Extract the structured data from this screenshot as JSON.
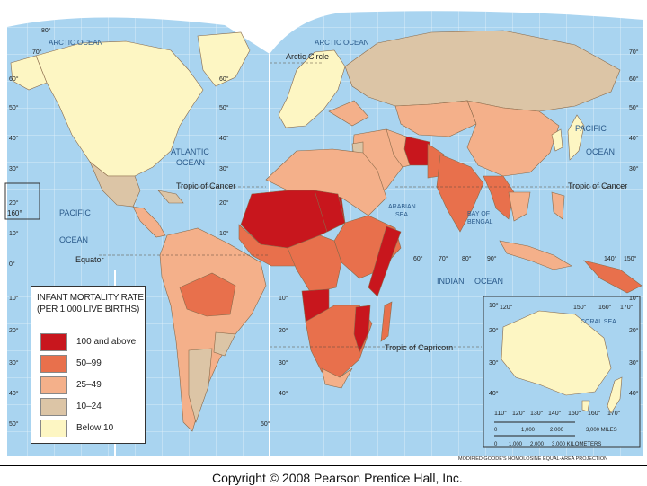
{
  "legend": {
    "title_line1": "INFANT MORTALITY RATE",
    "title_line2": "(PER 1,000 LIVE BIRTHS)",
    "classes": [
      {
        "label": "100 and above",
        "color": "#c8161d"
      },
      {
        "label": "50–99",
        "color": "#e8704c"
      },
      {
        "label": "25–49",
        "color": "#f4b08a"
      },
      {
        "label": "10–24",
        "color": "#dcc5a6"
      },
      {
        "label": "Below 10",
        "color": "#fdf6c3"
      }
    ]
  },
  "oceans": {
    "arctic_left": "ARCTIC OCEAN",
    "arctic_right": "ARCTIC OCEAN",
    "atlantic_1": "ATLANTIC",
    "atlantic_2": "OCEAN",
    "pacific_left_1": "PACIFIC",
    "pacific_left_2": "OCEAN",
    "pacific_right_1": "PACIFIC",
    "pacific_right_2": "OCEAN",
    "indian_1": "INDIAN",
    "indian_2": "OCEAN",
    "arabian_1": "ARABIAN",
    "arabian_2": "SEA",
    "bengal_1": "BAY OF",
    "bengal_2": "BENGAL",
    "coral_sea": "CORAL SEA"
  },
  "reference_lines": {
    "arctic_circle": "Arctic Circle",
    "tropic_cancer_left": "Tropic of Cancer",
    "tropic_cancer_right": "Tropic of Cancer",
    "equator": "Equator",
    "tropic_capricorn": "Tropic of Capricorn"
  },
  "latitudes_left": [
    "80°",
    "70°",
    "60°",
    "50°",
    "40°",
    "30°",
    "20°",
    "10°",
    "0°",
    "10°",
    "20°",
    "30°",
    "40°",
    "50°"
  ],
  "latitudes_mid": [
    "60°",
    "50°",
    "40°",
    "30°",
    "20°",
    "10°",
    "10°",
    "20°",
    "30°",
    "40°",
    "50°"
  ],
  "latitudes_right": [
    "70°",
    "60°",
    "50°",
    "40°",
    "30°"
  ],
  "longitude_labels": [
    "60°",
    "70°",
    "80°",
    "90°",
    "140°",
    "150°",
    "160°"
  ],
  "inset_labels": {
    "lat": [
      "10°",
      "20°",
      "30°",
      "40°"
    ],
    "lon_top": [
      "120°",
      "150°",
      "160°",
      "170°"
    ],
    "lon_bottom": [
      "110°",
      "120°",
      "130°",
      "140°",
      "150°",
      "160°",
      "170°"
    ],
    "lat_right": [
      "10°",
      "20°",
      "30°",
      "40°"
    ]
  },
  "scale": {
    "miles": [
      "0",
      "1,000",
      "2,000",
      "3,000 MILES"
    ],
    "km": [
      "0",
      "1,000",
      "2,000",
      "3,000 KILOMETERS"
    ],
    "projection": "MODIFIED GOODE'S HOMOLOSINE EQUAL-AREA PROJECTION"
  },
  "misc_labels": {
    "left_160": "160°"
  },
  "copyright": "Copyright © 2008 Pearson Prentice Hall, Inc."
}
